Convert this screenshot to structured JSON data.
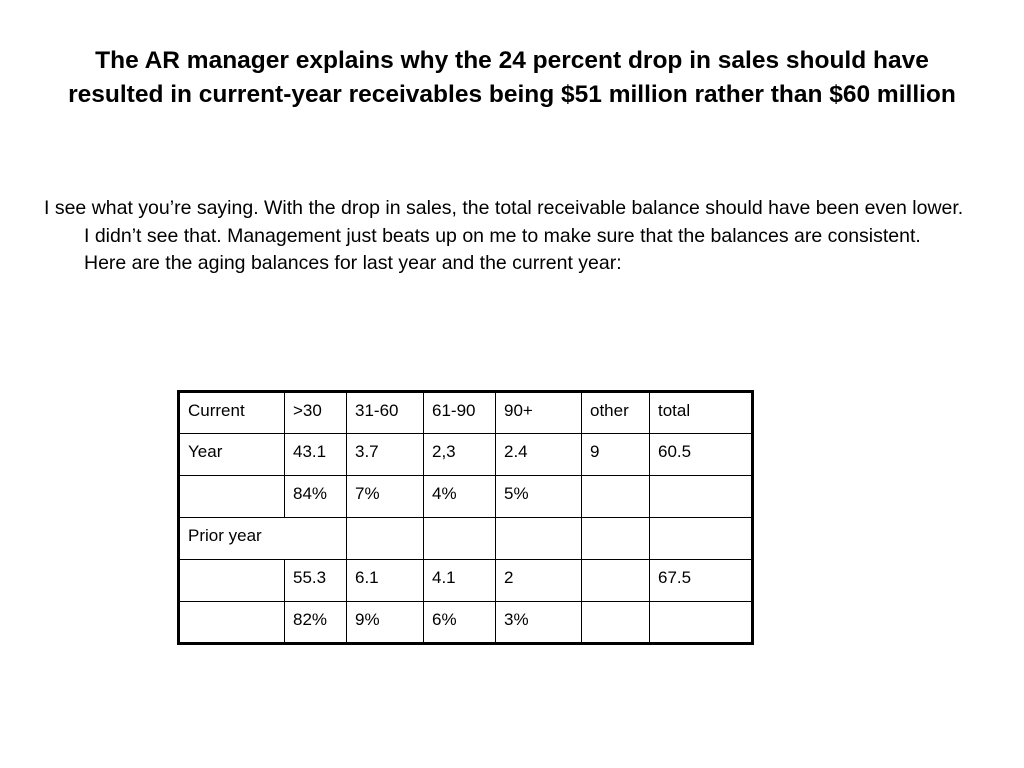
{
  "slide": {
    "title": "The AR manager explains why the 24 percent drop in sales should have resulted in current-year receivables being $51 million rather than $60 million",
    "body": "I see what you’re saying. With the drop in sales, the total receivable balance should have been even lower. I didn’t see that. Management just beats up on me to make sure that the  balances are consistent. Here are the aging balances for last year and the current year:"
  },
  "table": {
    "rows": [
      [
        "Current",
        ">30",
        "31-60",
        "61-90",
        "90+",
        "other",
        "total"
      ],
      [
        "Year",
        "43.1",
        "3.7",
        "2,3",
        "2.4",
        "9",
        "60.5"
      ],
      [
        "",
        "84%",
        "7%",
        "4%",
        "5%",
        "",
        ""
      ],
      [
        "Prior year",
        "",
        "",
        "",
        "",
        ""
      ],
      [
        "",
        "55.3",
        "6.1",
        "4.1",
        "2",
        "",
        "67.5"
      ],
      [
        "",
        "82%",
        "9%",
        "6%",
        "3%",
        "",
        ""
      ]
    ]
  }
}
